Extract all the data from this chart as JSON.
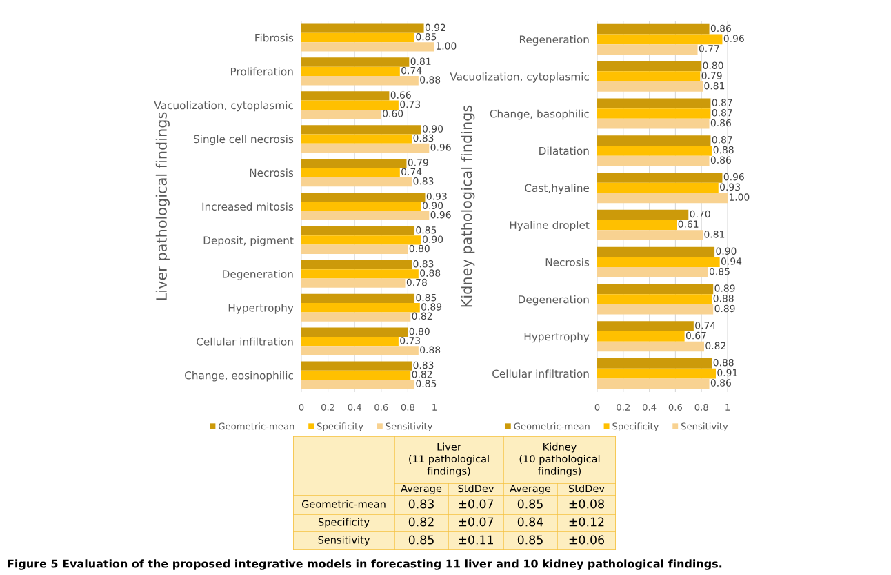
{
  "chart_data": [
    {
      "type": "bar",
      "orientation": "horizontal",
      "ylabel": "Liver pathological findings",
      "categories": [
        "Fibrosis",
        "Proliferation",
        "Vacuolization, cytoplasmic",
        "Single cell necrosis",
        "Necrosis",
        "Increased mitosis",
        "Deposit, pigment",
        "Degeneration",
        "Hypertrophy",
        "Cellular infiltration",
        "Change, eosinophilic"
      ],
      "series": [
        {
          "name": "Geometric-mean",
          "color": "#cc9a0a",
          "values": [
            0.92,
            0.81,
            0.66,
            0.9,
            0.79,
            0.93,
            0.85,
            0.83,
            0.85,
            0.8,
            0.83
          ],
          "value_labels": [
            "0.92",
            "0.81",
            "0.66",
            "0.90",
            "0.79",
            "0.93",
            "0.85",
            "0.83",
            "0.85",
            "0.80",
            "0.83"
          ]
        },
        {
          "name": "Specificity",
          "color": "#ffc000",
          "values": [
            0.85,
            0.74,
            0.73,
            0.83,
            0.74,
            0.9,
            0.9,
            0.88,
            0.89,
            0.73,
            0.82
          ],
          "value_labels": [
            "0.85",
            "0.74",
            "0.73",
            "0.83",
            "0.74",
            "0.90",
            "0.90",
            "0.88",
            "0.89",
            "0.73",
            "0.82"
          ]
        },
        {
          "name": "Sensitivity",
          "color": "#f8d291",
          "values": [
            1.0,
            0.88,
            0.6,
            0.96,
            0.83,
            0.96,
            0.8,
            0.78,
            0.82,
            0.88,
            0.85
          ],
          "value_labels": [
            "1.00",
            "0.88",
            "0.60",
            "0.96",
            "0.83",
            "0.96",
            "0.80",
            "0.78",
            "0.82",
            "0.88",
            "0.85"
          ]
        }
      ],
      "xlim": [
        0,
        1
      ],
      "xticks": [
        0,
        0.2,
        0.4,
        0.6,
        0.8,
        1
      ],
      "grid": "x",
      "legend": "bottom",
      "annotations": [
        "Figure 5 Evaluation of the proposed integrative models in forecasting 11 liver and 10 kidney pathological findings."
      ]
    },
    {
      "type": "bar",
      "orientation": "horizontal",
      "ylabel": "Kidney pathological findings",
      "categories": [
        "Regeneration",
        "Vacuolization, cytoplasmic",
        "Change, basophilic",
        "Dilatation",
        "Cast,hyaline",
        "Hyaline droplet",
        "Necrosis",
        "Degeneration",
        "Hypertrophy",
        "Cellular infiltration"
      ],
      "series": [
        {
          "name": "Geometric-mean",
          "color": "#cc9a0a",
          "values": [
            0.86,
            0.8,
            0.87,
            0.87,
            0.96,
            0.7,
            0.9,
            0.89,
            0.74,
            0.88
          ],
          "value_labels": [
            "0.86",
            "0.80",
            "0.87",
            "0.87",
            "0.96",
            "0.70",
            "0.90",
            "0.89",
            "0.74",
            "0.88"
          ]
        },
        {
          "name": "Specificity",
          "color": "#ffc000",
          "values": [
            0.96,
            0.79,
            0.87,
            0.88,
            0.93,
            0.61,
            0.94,
            0.88,
            0.67,
            0.91
          ],
          "value_labels": [
            "0.96",
            "0.79",
            "0.87",
            "0.88",
            "0.93",
            "0.61",
            "0.94",
            "0.88",
            "0.67",
            "0.91"
          ]
        },
        {
          "name": "Sensitivity",
          "color": "#f8d291",
          "values": [
            0.77,
            0.81,
            0.86,
            0.86,
            1.0,
            0.81,
            0.85,
            0.89,
            0.82,
            0.86
          ],
          "value_labels": [
            "0.77",
            "0.81",
            "0.86",
            "0.86",
            "1.00",
            "0.81",
            "0.85",
            "0.89",
            "0.82",
            "0.86"
          ]
        }
      ],
      "xlim": [
        0,
        1
      ],
      "xticks": [
        0,
        0.2,
        0.4,
        0.6,
        0.8,
        1
      ],
      "grid": "x",
      "legend": "bottom"
    },
    {
      "type": "other",
      "annotations": [
        "Liver\n(11 pathological\nfindings)",
        "Kidney\n(10 pathological\nfindings)"
      ],
      "categories": [
        "Geometric-mean",
        "Specificity",
        "Sensitivity"
      ],
      "series": [
        {
          "name": "Average",
          "values": [
            0.83,
            0.82,
            0.85
          ],
          "value_labels": [
            "0.83",
            "0.82",
            "0.85"
          ]
        },
        {
          "name": "StdDev",
          "values": [
            0.07,
            0.07,
            0.11
          ],
          "value_labels": [
            "±0.07",
            "±0.07",
            "±0.11"
          ]
        },
        {
          "name": "Average",
          "values": [
            0.85,
            0.84,
            0.85
          ],
          "value_labels": [
            "0.85",
            "0.84",
            "0.85"
          ]
        },
        {
          "name": "StdDev",
          "values": [
            0.08,
            0.12,
            0.06
          ],
          "value_labels": [
            "±0.08",
            "±0.12",
            "±0.06"
          ]
        }
      ]
    }
  ]
}
